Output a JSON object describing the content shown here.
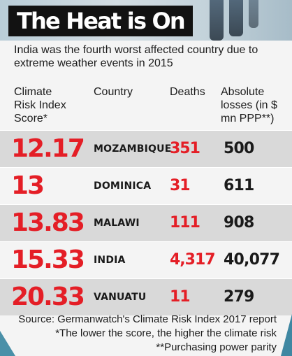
{
  "title": "The Heat is On",
  "subtitle": "India was the fourth worst affected country due to extreme weather events in 2015",
  "headers": {
    "score": [
      "Climate",
      "Risk Index",
      "Score*"
    ],
    "country": "Country",
    "deaths": "Deaths",
    "losses": [
      "Absolute",
      "losses (in $",
      "mn PPP**)"
    ]
  },
  "chart_data": {
    "type": "table",
    "columns": [
      "Climate Risk Index Score*",
      "Country",
      "Deaths",
      "Absolute losses (in $ mn PPP**)"
    ],
    "rows": [
      {
        "score": "12.17",
        "country": "MOZAMBIQUE",
        "deaths": "351",
        "losses": "500"
      },
      {
        "score": "13",
        "country": "DOMINICA",
        "deaths": "31",
        "losses": "611"
      },
      {
        "score": "13.83",
        "country": "MALAWI",
        "deaths": "111",
        "losses": "908"
      },
      {
        "score": "15.33",
        "country": "INDIA",
        "deaths": "4,317",
        "losses": "40,077"
      },
      {
        "score": "20.33",
        "country": "VANUATU",
        "deaths": "11",
        "losses": "279"
      }
    ]
  },
  "footnotes": {
    "source": "Source: Germanwatch's Climate Risk Index 2017 report",
    "note1": "*The lower the score, the higher the climate risk",
    "note2": "**Purchasing power parity"
  },
  "colors": {
    "accent_red": "#e41e26",
    "row_shade": "#d9d9d9",
    "title_bg": "#121212"
  }
}
